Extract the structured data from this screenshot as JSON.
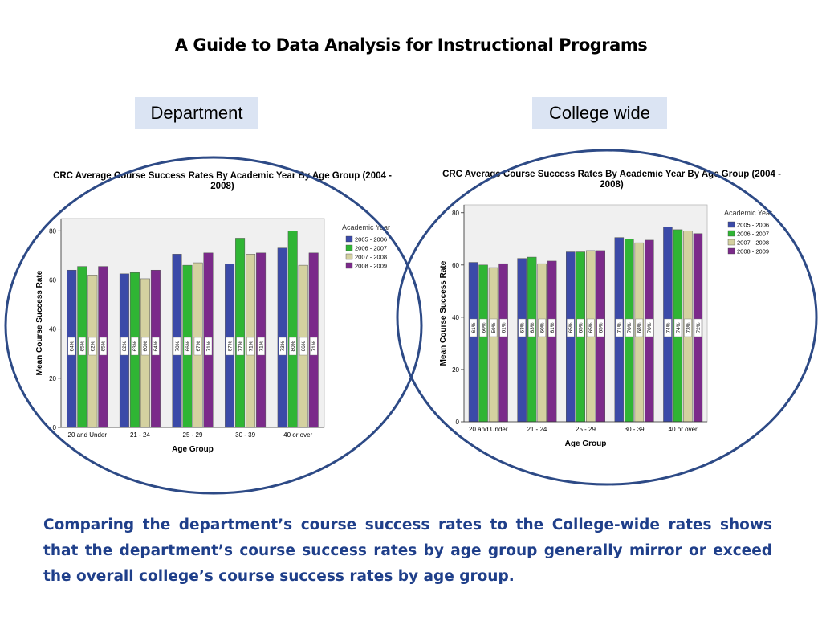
{
  "page": {
    "title": "A Guide to Data Analysis for Instructional Programs",
    "label_department": "Department",
    "label_college": "College wide",
    "caption": "Comparing the department’s course success rates to the College-wide rates shows that the department’s course success rates by age group generally mirror or exceed the overall college’s course success rates by age group."
  },
  "colors": {
    "series": [
      "#3b4aa8",
      "#2fb534",
      "#d4d1a0",
      "#7b2a8a"
    ],
    "ellipse": "#2d4a86",
    "plot_bg": "#f0f0f0",
    "label_box": "#dbe4f3",
    "caption": "#1f3f8a"
  },
  "chart_data": [
    {
      "type": "bar",
      "title": "CRC Average Course Success Rates By Academic Year By Age Group (2004 - 2008)",
      "xlabel": "Age Group",
      "ylabel": "Mean Course Success Rate",
      "ylim": [
        0,
        85
      ],
      "yticks": [
        0,
        20,
        40,
        60,
        80
      ],
      "categories": [
        "20 and Under",
        "21 - 24",
        "25 - 29",
        "30 - 39",
        "40 or over"
      ],
      "legend_title": "Academic Year",
      "legend_position": "right",
      "series": [
        {
          "name": "2005 - 2006",
          "values": [
            64,
            62.5,
            70.5,
            66.5,
            73
          ],
          "labels": [
            "64%",
            "62%",
            "70%",
            "67%",
            "73%"
          ]
        },
        {
          "name": "2006 - 2007",
          "values": [
            65.5,
            63,
            66,
            77,
            80
          ],
          "labels": [
            "65%",
            "63%",
            "66%",
            "77%",
            "80%"
          ]
        },
        {
          "name": "2007 - 2008",
          "values": [
            62,
            60.5,
            67,
            70.5,
            66
          ],
          "labels": [
            "62%",
            "60%",
            "67%",
            "71%",
            "66%"
          ]
        },
        {
          "name": "2008 - 2009",
          "values": [
            65.5,
            64,
            71,
            71,
            71
          ],
          "labels": [
            "65%",
            "64%",
            "71%",
            "71%",
            "71%"
          ]
        }
      ]
    },
    {
      "type": "bar",
      "title": "CRC Average Course Success Rates By Academic Year By Age Group (2004 - 2008)",
      "xlabel": "Age Group",
      "ylabel": "Mean Course Success Rate",
      "ylim": [
        0,
        83
      ],
      "yticks": [
        0,
        20,
        40,
        60,
        80
      ],
      "categories": [
        "20 and Under",
        "21 - 24",
        "25 - 29",
        "30 - 39",
        "40 or over"
      ],
      "legend_title": "Academic Year",
      "legend_position": "right",
      "series": [
        {
          "name": "2005 - 2006",
          "values": [
            61,
            62.5,
            65,
            70.5,
            74.5
          ],
          "labels": [
            "61%",
            "63%",
            "65%",
            "71%",
            "74%"
          ]
        },
        {
          "name": "2006 - 2007",
          "values": [
            60,
            63,
            65,
            70,
            73.5
          ],
          "labels": [
            "60%",
            "63%",
            "65%",
            "70%",
            "74%"
          ]
        },
        {
          "name": "2007 - 2008",
          "values": [
            59,
            60.5,
            65.5,
            68.5,
            73
          ],
          "labels": [
            "59%",
            "60%",
            "65%",
            "68%",
            "73%"
          ]
        },
        {
          "name": "2008 - 2009",
          "values": [
            60.5,
            61.5,
            65.5,
            69.5,
            72
          ],
          "labels": [
            "61%",
            "61%",
            "65%",
            "70%",
            "72%"
          ]
        }
      ]
    }
  ]
}
